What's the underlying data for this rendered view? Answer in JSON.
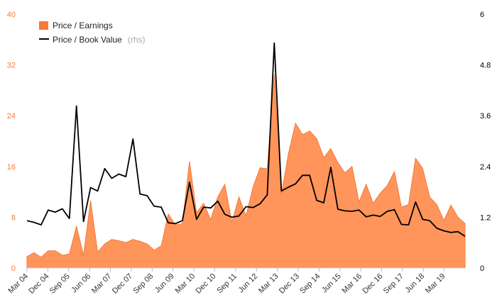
{
  "chart_data": {
    "type": "area",
    "x_labels": [
      "Mar 04",
      "Dec 04",
      "Sep 05",
      "Jun 06",
      "Mar 07",
      "Dec 07",
      "Sep 08",
      "Jun 09",
      "Mar 10",
      "Dec 10",
      "Sep 11",
      "Jun 12",
      "Mar 13",
      "Dec 13",
      "Sep 14",
      "Jun 15",
      "Mar 16",
      "Dec 16",
      "Sep 17",
      "Jun 18",
      "Mar 19"
    ],
    "y_left": {
      "ticks": [
        "0",
        "8",
        "16",
        "24",
        "32",
        "40"
      ],
      "min": 0,
      "max": 40
    },
    "y_right": {
      "ticks": [
        "0",
        "1.2",
        "2.4",
        "3.6",
        "4.8",
        "6"
      ],
      "min": 0,
      "max": 6
    },
    "legend": {
      "position": "top-left"
    },
    "series": [
      {
        "name": "Price / Earnings",
        "axis": "left",
        "style": "area",
        "color": "#f47b3a",
        "fill": "#ff955a",
        "values": [
          1.8,
          2.4,
          1.7,
          2.7,
          2.7,
          2.0,
          2.2,
          6.6,
          2.0,
          10.6,
          2.5,
          3.8,
          4.5,
          4.3,
          4.0,
          4.5,
          4.2,
          3.8,
          2.8,
          3.5,
          8.5,
          6.8,
          7.0,
          16.8,
          8.7,
          10.2,
          7.6,
          11.2,
          13.2,
          7.2,
          11.2,
          8.2,
          12.8,
          15.8,
          15.6,
          30.5,
          11.6,
          18.0,
          22.8,
          21.0,
          21.6,
          20.4,
          17.4,
          18.8,
          16.6,
          15.0,
          16.0,
          10.4,
          13.2,
          10.2,
          11.8,
          13.0,
          15.2,
          9.6,
          10.0,
          17.3,
          15.7,
          11.2,
          10.0,
          7.5,
          9.9,
          8.0,
          7.0
        ]
      },
      {
        "name": "Price / Book Value",
        "suffix": "(rhs)",
        "axis": "right",
        "style": "line",
        "color": "#000000",
        "values": [
          1.12,
          1.08,
          1.02,
          1.37,
          1.32,
          1.4,
          1.17,
          3.83,
          1.1,
          1.9,
          1.82,
          2.35,
          2.12,
          2.22,
          2.16,
          3.05,
          1.75,
          1.71,
          1.46,
          1.44,
          1.07,
          1.05,
          1.12,
          2.03,
          1.15,
          1.44,
          1.42,
          1.58,
          1.27,
          1.2,
          1.23,
          1.45,
          1.43,
          1.52,
          1.73,
          5.32,
          1.82,
          1.91,
          1.99,
          2.19,
          2.19,
          1.6,
          1.54,
          2.38,
          1.39,
          1.35,
          1.34,
          1.37,
          1.21,
          1.25,
          1.22,
          1.34,
          1.38,
          1.03,
          1.02,
          1.56,
          1.15,
          1.12,
          0.94,
          0.88,
          0.84,
          0.86,
          0.75
        ]
      }
    ]
  }
}
